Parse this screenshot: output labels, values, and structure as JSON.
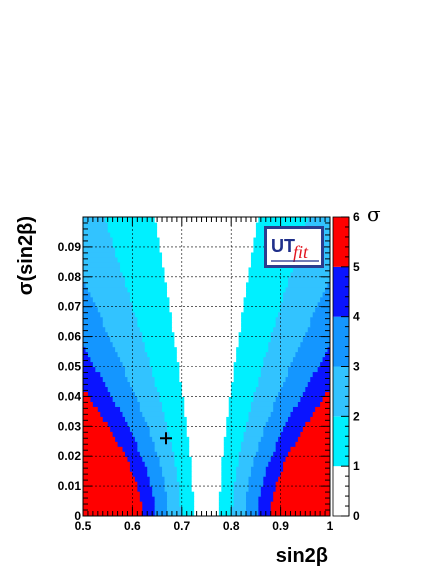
{
  "chart_data": {
    "type": "heatmap",
    "xlabel": "sin2β",
    "ylabel": "σ(sin2β)",
    "zlabel": "σ",
    "xlim": [
      0.5,
      1.0
    ],
    "ylim": [
      0,
      0.1
    ],
    "zlim": [
      0,
      6
    ],
    "x_ticks": [
      "0.5",
      "0.6",
      "0.7",
      "0.8",
      "0.9",
      "1"
    ],
    "y_ticks": [
      "0",
      "0.01",
      "0.02",
      "0.03",
      "0.04",
      "0.05",
      "0.06",
      "0.07",
      "0.08",
      "0.09"
    ],
    "z_ticks": [
      "0",
      "1",
      "2",
      "3",
      "4",
      "5",
      "6"
    ],
    "grid": true,
    "central_value": 0.75,
    "marker": {
      "x": 0.668,
      "y": 0.026,
      "symbol": "+"
    },
    "levels": [
      {
        "sigma": 1,
        "color": "#ffffff"
      },
      {
        "sigma": 2,
        "color": "#00f0ff"
      },
      {
        "sigma": 3,
        "color": "#32c3ff"
      },
      {
        "sigma": 4,
        "color": "#1496ff"
      },
      {
        "sigma": 5,
        "color": "#0a14ff"
      },
      {
        "sigma": 6,
        "color": "#ff0000"
      }
    ],
    "logo": {
      "text_main": "UT",
      "text_sub": "fit"
    }
  }
}
